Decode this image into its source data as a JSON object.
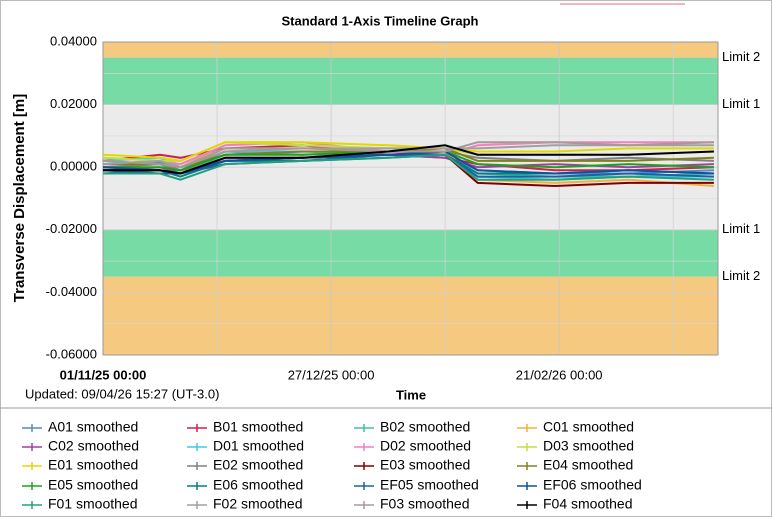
{
  "chart_data": {
    "type": "line",
    "title": "Standard 1-Axis Timeline Graph",
    "y_label": "Transverse Displacement [m]",
    "x_label": "Time",
    "updated": "Updated: 09/04/26 15:27 (UT-3.0)",
    "x": [
      "01/11/25",
      "15/11/25",
      "20/11/25",
      "01/12/25",
      "20/12/25",
      "10/01/26",
      "24/01/26",
      "01/02/26",
      "20/02/26",
      "10/03/26",
      "31/03/26"
    ],
    "xlim": [
      "01/11/25",
      "01/04/26"
    ],
    "xticks": [
      {
        "value": "01/11/25",
        "label": "01/11/25 00:00"
      },
      {
        "value": "27/12/25",
        "label": "27/12/25 00:00"
      },
      {
        "value": "21/02/26",
        "label": "21/02/26 00:00"
      }
    ],
    "xgrid_minor": [
      "29/11/25",
      "24/01/26",
      "21/03/26"
    ],
    "ylim": [
      -0.06,
      0.04
    ],
    "yticks": [
      {
        "value": 0.04,
        "label": "0.04000"
      },
      {
        "value": 0.02,
        "label": "0.02000"
      },
      {
        "value": 0,
        "label": "0.00000"
      },
      {
        "value": -0.02,
        "label": "-0.02000"
      },
      {
        "value": -0.04,
        "label": "-0.04000"
      },
      {
        "value": -0.06,
        "label": "-0.06000"
      }
    ],
    "ygrid_minor": [
      0.03,
      0.01,
      -0.01,
      -0.03,
      -0.05
    ],
    "grid": true,
    "bands": [
      {
        "from": 0.035,
        "to": 0.04,
        "color": "#f5c97f"
      },
      {
        "from": 0.02,
        "to": 0.035,
        "color": "#77dba6"
      },
      {
        "from": -0.02,
        "to": 0.02,
        "color": "#ebebeb"
      },
      {
        "from": -0.035,
        "to": -0.02,
        "color": "#77dba6"
      },
      {
        "from": -0.06,
        "to": -0.035,
        "color": "#f5c97f"
      }
    ],
    "limits": [
      {
        "value": 0.035,
        "label": "Limit 2"
      },
      {
        "value": 0.02,
        "label": "Limit 1"
      },
      {
        "value": -0.02,
        "label": "Limit 1"
      },
      {
        "value": -0.035,
        "label": "Limit 2"
      }
    ],
    "series": [
      {
        "name": "A01 smoothed",
        "color": "#4a8fc8",
        "values": [
          0.001,
          0.0015,
          -0.001,
          0.005,
          0.004,
          0.005,
          0.004,
          -0.001,
          -0.002,
          -0.002,
          -0.001
        ]
      },
      {
        "name": "B01 smoothed",
        "color": "#d0204a",
        "values": [
          0.002,
          0.004,
          0.003,
          0.006,
          0.007,
          0.004,
          0.003,
          0.001,
          -0.001,
          -0.001,
          0.0
        ]
      },
      {
        "name": "B02 smoothed",
        "color": "#40c0a0",
        "values": [
          0.0,
          0.001,
          -0.002,
          0.004,
          0.005,
          0.004,
          0.004,
          -0.002,
          -0.003,
          -0.003,
          -0.002
        ]
      },
      {
        "name": "C01 smoothed",
        "color": "#f0b040",
        "values": [
          0.003,
          0.002,
          0.001,
          0.006,
          0.006,
          0.006,
          0.005,
          -0.004,
          -0.005,
          -0.004,
          -0.006
        ]
      },
      {
        "name": "C02 smoothed",
        "color": "#a040a0",
        "values": [
          -0.001,
          0.0,
          -0.002,
          0.003,
          0.003,
          0.004,
          0.003,
          0.0,
          0.001,
          0.0,
          0.001
        ]
      },
      {
        "name": "D01 smoothed",
        "color": "#40c8e0",
        "values": [
          0.002,
          0.003,
          0.0,
          0.005,
          0.005,
          0.005,
          0.004,
          -0.003,
          -0.004,
          -0.003,
          -0.003
        ]
      },
      {
        "name": "D02 smoothed",
        "color": "#f080c0",
        "values": [
          0.001,
          0.002,
          0.001,
          0.007,
          0.008,
          0.005,
          0.004,
          0.007,
          0.008,
          0.008,
          0.008
        ]
      },
      {
        "name": "D03 smoothed",
        "color": "#c0e040",
        "values": [
          0.003,
          0.002,
          0.002,
          0.008,
          0.007,
          0.006,
          0.006,
          0.004,
          0.004,
          0.004,
          0.005
        ]
      },
      {
        "name": "E01 smoothed",
        "color": "#e0d800",
        "values": [
          0.004,
          0.003,
          0.002,
          0.008,
          0.008,
          0.007,
          0.006,
          0.005,
          0.005,
          0.006,
          0.006
        ]
      },
      {
        "name": "E02 smoothed",
        "color": "#808080",
        "values": [
          0.0,
          0.001,
          -0.001,
          0.002,
          0.003,
          0.004,
          0.005,
          0.003,
          0.002,
          0.003,
          0.002
        ]
      },
      {
        "name": "E03 smoothed",
        "color": "#800000",
        "values": [
          -0.001,
          -0.001,
          -0.002,
          0.002,
          0.003,
          0.004,
          0.004,
          -0.005,
          -0.006,
          -0.005,
          -0.005
        ]
      },
      {
        "name": "E04 smoothed",
        "color": "#808020",
        "values": [
          0.001,
          0.001,
          0.0,
          0.004,
          0.005,
          0.005,
          0.006,
          0.002,
          0.002,
          0.002,
          0.003
        ]
      },
      {
        "name": "E05 smoothed",
        "color": "#20a020",
        "values": [
          0.0,
          0.0,
          -0.001,
          0.004,
          0.004,
          0.005,
          0.005,
          0.001,
          0.0,
          0.001,
          0.0
        ]
      },
      {
        "name": "E06 smoothed",
        "color": "#008080",
        "values": [
          -0.002,
          -0.001,
          -0.003,
          0.002,
          0.002,
          0.003,
          0.004,
          -0.002,
          -0.002,
          -0.001,
          -0.002
        ]
      },
      {
        "name": "EF05 smoothed",
        "color": "#2060a0",
        "values": [
          -0.001,
          -0.002,
          -0.002,
          0.001,
          0.002,
          0.004,
          0.004,
          -0.003,
          -0.003,
          -0.002,
          -0.003
        ]
      },
      {
        "name": "EF06 smoothed",
        "color": "#1050a0",
        "values": [
          0.0,
          -0.001,
          -0.002,
          0.002,
          0.003,
          0.004,
          0.005,
          -0.001,
          -0.002,
          -0.001,
          -0.002
        ]
      },
      {
        "name": "F01 smoothed",
        "color": "#20a080",
        "values": [
          -0.002,
          -0.002,
          -0.004,
          0.001,
          0.002,
          0.003,
          0.004,
          -0.004,
          -0.004,
          -0.003,
          -0.004
        ]
      },
      {
        "name": "F02 smoothed",
        "color": "#a0a0a0",
        "values": [
          0.001,
          0.002,
          0.0,
          0.006,
          0.006,
          0.006,
          0.006,
          0.006,
          0.007,
          0.007,
          0.007
        ]
      },
      {
        "name": "F03 smoothed",
        "color": "#a89898",
        "values": [
          0.002,
          0.001,
          0.0,
          0.005,
          0.006,
          0.005,
          0.005,
          0.008,
          0.008,
          0.007,
          0.008
        ]
      },
      {
        "name": "F04 smoothed",
        "color": "#000000",
        "values": [
          -0.001,
          -0.001,
          -0.002,
          0.003,
          0.003,
          0.005,
          0.007,
          0.004,
          0.004,
          0.004,
          0.005
        ]
      }
    ]
  }
}
